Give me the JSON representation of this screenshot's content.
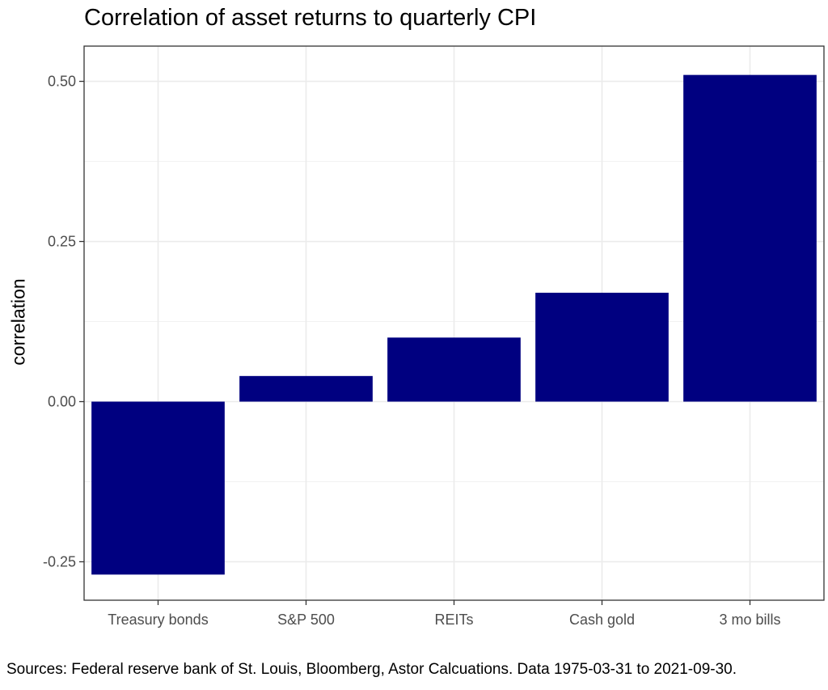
{
  "chart_data": {
    "type": "bar",
    "title": "Correlation of asset returns to quarterly CPI",
    "xlabel": "",
    "ylabel": "correlation",
    "categories": [
      "Treasury bonds",
      "S&P 500",
      "REITs",
      "Cash gold",
      "3 mo bills"
    ],
    "values": [
      -0.27,
      0.04,
      0.1,
      0.17,
      0.51
    ],
    "ylim": [
      -0.31,
      0.555
    ],
    "yticks": [
      -0.25,
      0.0,
      0.25,
      0.5
    ],
    "ytick_labels": [
      "-0.25",
      "0.00",
      "0.25",
      "0.50"
    ],
    "grid": true,
    "bar_color": "#000080",
    "caption": "Sources: Federal reserve bank of St. Louis, Bloomberg, Astor Calcuations. Data 1975-03-31 to 2021-09-30."
  }
}
